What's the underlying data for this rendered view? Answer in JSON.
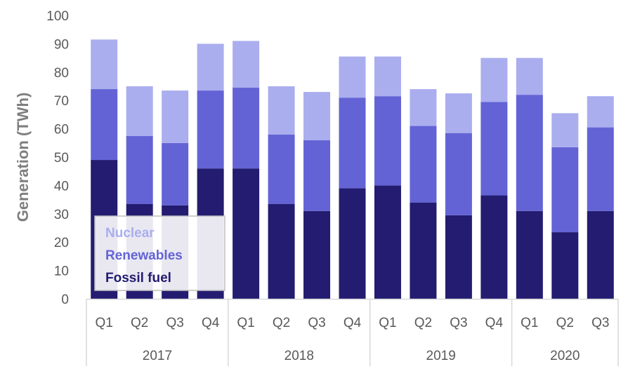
{
  "chart_data": {
    "type": "bar",
    "stacked": true,
    "ylabel": "Generation (TWh)",
    "ylim": [
      0,
      100
    ],
    "yticks": [
      0,
      10,
      20,
      30,
      40,
      50,
      60,
      70,
      80,
      90,
      100
    ],
    "grid": false,
    "legend_position": "bottom-left",
    "categories": [
      "Q1",
      "Q2",
      "Q3",
      "Q4",
      "Q1",
      "Q2",
      "Q3",
      "Q4",
      "Q1",
      "Q2",
      "Q3",
      "Q4",
      "Q1",
      "Q2",
      "Q3"
    ],
    "groups": [
      {
        "label": "2017",
        "count": 4
      },
      {
        "label": "2018",
        "count": 4
      },
      {
        "label": "2019",
        "count": 4
      },
      {
        "label": "2020",
        "count": 3
      }
    ],
    "series": [
      {
        "name": "Fossil fuel",
        "color": "#231c70",
        "values": [
          49,
          33.5,
          33,
          46,
          46,
          33.5,
          31,
          39,
          40,
          34,
          29.5,
          36.5,
          31,
          23.5,
          31
        ]
      },
      {
        "name": "Renewables",
        "color": "#6363d6",
        "values": [
          25,
          24,
          22,
          27.5,
          28.5,
          24.5,
          25,
          32,
          31.5,
          27,
          29,
          33,
          41,
          30,
          29.5
        ]
      },
      {
        "name": "Nuclear",
        "color": "#aaaeee",
        "values": [
          17.5,
          17.5,
          18.5,
          16.5,
          16.5,
          17,
          17,
          14.5,
          14,
          13,
          14,
          15.5,
          13,
          12,
          11
        ]
      }
    ],
    "legend": [
      {
        "name": "Nuclear",
        "color": "#aaaeee"
      },
      {
        "name": "Renewables",
        "color": "#6363d6"
      },
      {
        "name": "Fossil fuel",
        "color": "#231c70"
      }
    ]
  }
}
